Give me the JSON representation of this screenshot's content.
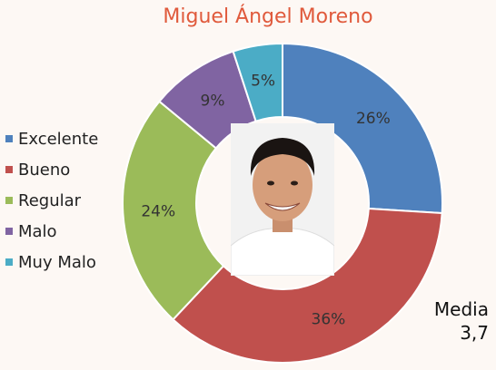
{
  "chart_data": {
    "type": "pie",
    "title": "Miguel Ángel Moreno",
    "categories": [
      "Excelente",
      "Bueno",
      "Regular",
      "Malo",
      "Muy Malo"
    ],
    "values": [
      26,
      36,
      24,
      9,
      5
    ],
    "labels": [
      "26%",
      "36%",
      "24%",
      "9%",
      "5%"
    ],
    "colors": [
      "#4f81bd",
      "#c0504d",
      "#9bbb59",
      "#8064a2",
      "#4bacc6"
    ],
    "legend_position": "left",
    "donut": true
  },
  "mean": {
    "label": "Media",
    "value": "3,7"
  }
}
